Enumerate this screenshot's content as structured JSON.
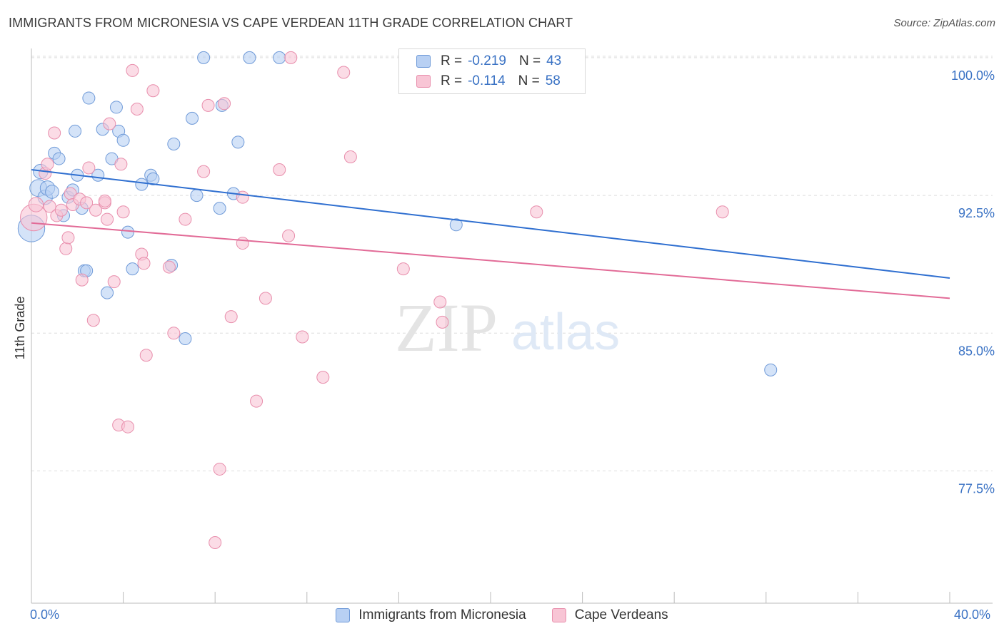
{
  "title": "IMMIGRANTS FROM MICRONESIA VS CAPE VERDEAN 11TH GRADE CORRELATION CHART",
  "source": "Source: ZipAtlas.com",
  "watermark": {
    "zip": "ZIP",
    "atlas": "atlas"
  },
  "legend": {
    "rows": [
      {
        "r_label": "R =",
        "r_value": "-0.219",
        "n_label": "N =",
        "n_value": "43"
      },
      {
        "r_label": "R =",
        "r_value": "-0.114",
        "n_label": "N =",
        "n_value": "58"
      }
    ]
  },
  "colors": {
    "blue_fill": "#b8d0f3",
    "blue_stroke": "#6f9ad8",
    "blue_line": "#2f6fd0",
    "pink_fill": "#f8c5d5",
    "pink_stroke": "#e88eac",
    "pink_line": "#e26b97",
    "grid": "#dddddd",
    "axis_label": "#3a72c4"
  },
  "chart_data": {
    "type": "scatter",
    "title": "IMMIGRANTS FROM MICRONESIA VS CAPE VERDEAN 11TH GRADE CORRELATION CHART",
    "xlabel": "",
    "ylabel": "11th Grade",
    "xlim": [
      0,
      40
    ],
    "ylim": [
      70.3,
      100.5
    ],
    "x_tick_labels": [
      "0.0%",
      "40.0%"
    ],
    "y_ticks": [
      77.5,
      85.0,
      92.5,
      100.0
    ],
    "y_tick_labels": [
      "77.5%",
      "85.0%",
      "92.5%",
      "100.0%"
    ],
    "grid": true,
    "legend_position": "top-center",
    "series": [
      {
        "name": "Immigrants from Micronesia",
        "color": "blue",
        "trend": [
          [
            0,
            93.9
          ],
          [
            40,
            88.0
          ]
        ],
        "points": [
          [
            0.0,
            90.7,
            22
          ],
          [
            0.3,
            92.9,
            14
          ],
          [
            0.4,
            93.8,
            12
          ],
          [
            0.6,
            92.4,
            12
          ],
          [
            0.7,
            92.9,
            12
          ],
          [
            0.9,
            92.7,
            11
          ],
          [
            1.0,
            94.8,
            10
          ],
          [
            1.2,
            94.5,
            10
          ],
          [
            1.4,
            91.4,
            10
          ],
          [
            1.6,
            92.4,
            10
          ],
          [
            1.8,
            92.8,
            10
          ],
          [
            1.9,
            96.0,
            10
          ],
          [
            2.0,
            93.6,
            10
          ],
          [
            2.2,
            91.8,
            10
          ],
          [
            2.3,
            88.4,
            10
          ],
          [
            2.4,
            88.4,
            10
          ],
          [
            2.5,
            97.8,
            10
          ],
          [
            2.9,
            93.6,
            10
          ],
          [
            3.1,
            96.1,
            10
          ],
          [
            3.3,
            87.2,
            10
          ],
          [
            3.5,
            94.5,
            10
          ],
          [
            3.7,
            97.3,
            10
          ],
          [
            3.8,
            96.0,
            10
          ],
          [
            4.0,
            95.5,
            10
          ],
          [
            4.2,
            90.5,
            10
          ],
          [
            4.4,
            88.5,
            10
          ],
          [
            4.8,
            93.1,
            10
          ],
          [
            5.2,
            93.6,
            10
          ],
          [
            5.3,
            93.4,
            10
          ],
          [
            6.1,
            88.7,
            10
          ],
          [
            6.2,
            95.3,
            10
          ],
          [
            6.7,
            84.7,
            10
          ],
          [
            7.0,
            96.7,
            10
          ],
          [
            7.2,
            92.5,
            10
          ],
          [
            7.5,
            100.0,
            10
          ],
          [
            8.2,
            91.8,
            10
          ],
          [
            8.3,
            97.4,
            10
          ],
          [
            8.8,
            92.6,
            10
          ],
          [
            9.0,
            95.4,
            10
          ],
          [
            9.5,
            100.0,
            10
          ],
          [
            10.8,
            100.0,
            10
          ],
          [
            18.5,
            90.9,
            10
          ],
          [
            32.2,
            83.0,
            10
          ]
        ]
      },
      {
        "name": "Cape Verdeans",
        "color": "pink",
        "trend": [
          [
            0,
            91.0
          ],
          [
            40,
            86.9
          ]
        ],
        "points": [
          [
            0.1,
            91.3,
            22
          ],
          [
            0.2,
            92.0,
            12
          ],
          [
            0.6,
            93.7,
            10
          ],
          [
            0.7,
            94.2,
            10
          ],
          [
            0.8,
            91.9,
            10
          ],
          [
            1.0,
            95.9,
            10
          ],
          [
            1.1,
            91.4,
            10
          ],
          [
            1.3,
            91.7,
            10
          ],
          [
            1.5,
            89.6,
            10
          ],
          [
            1.6,
            90.2,
            10
          ],
          [
            1.7,
            92.6,
            10
          ],
          [
            1.8,
            92.0,
            10
          ],
          [
            2.1,
            92.3,
            10
          ],
          [
            2.2,
            87.9,
            10
          ],
          [
            2.4,
            92.1,
            10
          ],
          [
            2.5,
            94.0,
            10
          ],
          [
            2.7,
            85.7,
            10
          ],
          [
            2.8,
            91.7,
            10
          ],
          [
            3.2,
            92.1,
            10
          ],
          [
            3.2,
            92.2,
            10
          ],
          [
            3.3,
            91.2,
            10
          ],
          [
            3.4,
            96.4,
            10
          ],
          [
            3.6,
            87.8,
            10
          ],
          [
            3.8,
            80.0,
            10
          ],
          [
            3.9,
            94.2,
            10
          ],
          [
            4.0,
            91.6,
            10
          ],
          [
            4.2,
            79.9,
            10
          ],
          [
            4.4,
            99.3,
            10
          ],
          [
            4.6,
            97.2,
            10
          ],
          [
            4.8,
            89.3,
            10
          ],
          [
            4.9,
            88.8,
            10
          ],
          [
            5.0,
            83.8,
            10
          ],
          [
            5.3,
            98.2,
            10
          ],
          [
            6.0,
            88.6,
            10
          ],
          [
            6.2,
            85.0,
            10
          ],
          [
            6.7,
            91.2,
            10
          ],
          [
            7.5,
            93.8,
            10
          ],
          [
            7.7,
            97.4,
            10
          ],
          [
            8.0,
            73.6,
            10
          ],
          [
            8.2,
            77.6,
            10
          ],
          [
            8.4,
            97.5,
            10
          ],
          [
            8.7,
            85.9,
            10
          ],
          [
            9.2,
            92.4,
            10
          ],
          [
            9.2,
            89.9,
            10
          ],
          [
            9.8,
            81.3,
            10
          ],
          [
            10.2,
            86.9,
            10
          ],
          [
            10.8,
            93.9,
            10
          ],
          [
            11.2,
            90.3,
            10
          ],
          [
            11.3,
            100.0,
            10
          ],
          [
            11.8,
            84.8,
            10
          ],
          [
            12.7,
            82.6,
            10
          ],
          [
            13.6,
            99.2,
            10
          ],
          [
            13.9,
            94.6,
            10
          ],
          [
            16.2,
            88.5,
            10
          ],
          [
            17.8,
            86.7,
            10
          ],
          [
            17.9,
            85.6,
            10
          ],
          [
            22.0,
            91.6,
            10
          ],
          [
            30.1,
            91.6,
            10
          ]
        ]
      }
    ]
  },
  "bottom_legend": {
    "blue_label": "Immigrants from Micronesia",
    "pink_label": "Cape Verdeans"
  }
}
